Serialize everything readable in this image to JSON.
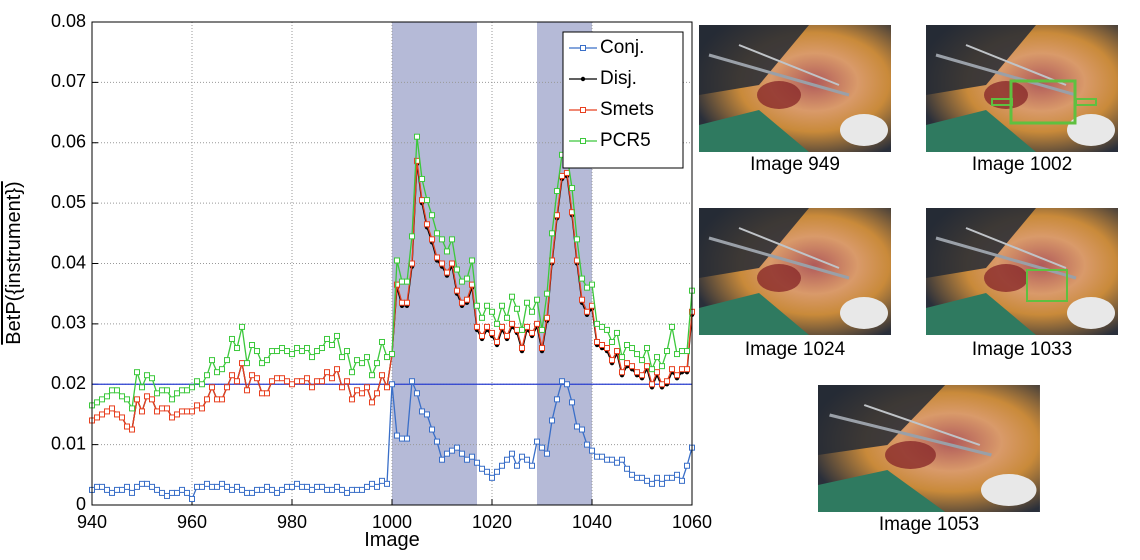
{
  "chart_data": {
    "type": "line",
    "x_label": "Image",
    "y_label": "BetP({instrument})",
    "x": [
      940,
      941,
      942,
      943,
      944,
      945,
      946,
      947,
      948,
      949,
      950,
      951,
      952,
      953,
      954,
      955,
      956,
      957,
      958,
      959,
      960,
      961,
      962,
      963,
      964,
      965,
      966,
      967,
      968,
      969,
      970,
      971,
      972,
      973,
      974,
      975,
      976,
      977,
      978,
      979,
      980,
      981,
      982,
      983,
      984,
      985,
      986,
      987,
      988,
      989,
      990,
      991,
      992,
      993,
      994,
      995,
      996,
      997,
      998,
      999,
      1000,
      1001,
      1002,
      1003,
      1004,
      1005,
      1006,
      1007,
      1008,
      1009,
      1010,
      1011,
      1012,
      1013,
      1014,
      1015,
      1016,
      1017,
      1018,
      1019,
      1020,
      1021,
      1022,
      1023,
      1024,
      1025,
      1026,
      1027,
      1028,
      1029,
      1030,
      1031,
      1032,
      1033,
      1034,
      1035,
      1036,
      1037,
      1038,
      1039,
      1040,
      1041,
      1042,
      1043,
      1044,
      1045,
      1046,
      1047,
      1048,
      1049,
      1050,
      1051,
      1052,
      1053,
      1054,
      1055,
      1056,
      1057,
      1058,
      1059,
      1060
    ],
    "series": [
      {
        "name": "Conj.",
        "color": "#3a6fc8",
        "marker": "square",
        "values": [
          0.0025,
          0.003,
          0.003,
          0.0025,
          0.002,
          0.0025,
          0.0025,
          0.003,
          0.002,
          0.003,
          0.0035,
          0.0035,
          0.003,
          0.0025,
          0.002,
          0.0015,
          0.002,
          0.002,
          0.0025,
          0.002,
          0.001,
          0.003,
          0.003,
          0.0035,
          0.003,
          0.003,
          0.0035,
          0.003,
          0.0025,
          0.003,
          0.0025,
          0.002,
          0.002,
          0.0025,
          0.0025,
          0.003,
          0.0025,
          0.002,
          0.0025,
          0.003,
          0.003,
          0.0035,
          0.003,
          0.003,
          0.0025,
          0.003,
          0.003,
          0.0025,
          0.0025,
          0.003,
          0.0025,
          0.002,
          0.0025,
          0.0025,
          0.0025,
          0.003,
          0.0035,
          0.003,
          0.004,
          0.0035,
          0.02,
          0.0115,
          0.011,
          0.011,
          0.0205,
          0.0185,
          0.0155,
          0.015,
          0.0125,
          0.0105,
          0.0075,
          0.0085,
          0.009,
          0.0095,
          0.0085,
          0.0075,
          0.008,
          0.007,
          0.006,
          0.0055,
          0.0045,
          0.0055,
          0.0065,
          0.0075,
          0.0085,
          0.0065,
          0.008,
          0.0075,
          0.0065,
          0.0105,
          0.0095,
          0.0085,
          0.014,
          0.0175,
          0.0205,
          0.02,
          0.017,
          0.013,
          0.0125,
          0.01,
          0.009,
          0.008,
          0.008,
          0.0075,
          0.0075,
          0.007,
          0.0075,
          0.006,
          0.005,
          0.0045,
          0.0045,
          0.004,
          0.0035,
          0.0045,
          0.0035,
          0.0045,
          0.0045,
          0.005,
          0.004,
          0.0065,
          0.0095
        ]
      },
      {
        "name": "Disj.",
        "color": "#000000",
        "marker": "dot",
        "values": [
          0.014,
          0.0145,
          0.015,
          0.0155,
          0.016,
          0.015,
          0.0145,
          0.013,
          0.0125,
          0.0175,
          0.0155,
          0.018,
          0.0175,
          0.0155,
          0.016,
          0.016,
          0.0145,
          0.015,
          0.0155,
          0.0155,
          0.0155,
          0.0165,
          0.016,
          0.0175,
          0.0195,
          0.0175,
          0.0175,
          0.0195,
          0.0215,
          0.0205,
          0.0235,
          0.019,
          0.0215,
          0.021,
          0.0185,
          0.0185,
          0.0205,
          0.021,
          0.021,
          0.0205,
          0.02,
          0.0205,
          0.0205,
          0.021,
          0.0195,
          0.0205,
          0.0205,
          0.022,
          0.021,
          0.0225,
          0.0195,
          0.0205,
          0.0175,
          0.019,
          0.0185,
          0.0195,
          0.017,
          0.0185,
          0.0215,
          0.0195,
          0.025,
          0.036,
          0.033,
          0.033,
          0.0395,
          0.0565,
          0.05,
          0.046,
          0.0435,
          0.0405,
          0.0395,
          0.038,
          0.0395,
          0.035,
          0.033,
          0.0335,
          0.036,
          0.029,
          0.0275,
          0.029,
          0.028,
          0.0265,
          0.029,
          0.0275,
          0.0295,
          0.0285,
          0.0255,
          0.029,
          0.028,
          0.0295,
          0.0255,
          0.0305,
          0.04,
          0.0475,
          0.054,
          0.0545,
          0.048,
          0.04,
          0.0335,
          0.0315,
          0.0325,
          0.0265,
          0.026,
          0.0255,
          0.0235,
          0.025,
          0.0215,
          0.023,
          0.0225,
          0.0215,
          0.021,
          0.0225,
          0.0195,
          0.0215,
          0.0195,
          0.02,
          0.022,
          0.021,
          0.022,
          0.022,
          0.0315
        ]
      },
      {
        "name": "Smets",
        "color": "#e84020",
        "marker": "square",
        "values": [
          0.014,
          0.0145,
          0.015,
          0.0155,
          0.016,
          0.015,
          0.0145,
          0.013,
          0.0125,
          0.0175,
          0.0155,
          0.018,
          0.0175,
          0.0155,
          0.016,
          0.016,
          0.0145,
          0.015,
          0.0155,
          0.0155,
          0.0155,
          0.0165,
          0.016,
          0.0175,
          0.0195,
          0.0175,
          0.0175,
          0.0195,
          0.0215,
          0.0205,
          0.0235,
          0.019,
          0.0215,
          0.021,
          0.0185,
          0.0185,
          0.0205,
          0.021,
          0.021,
          0.0205,
          0.02,
          0.0205,
          0.0205,
          0.021,
          0.0195,
          0.0205,
          0.0205,
          0.022,
          0.021,
          0.0225,
          0.0195,
          0.0205,
          0.0175,
          0.019,
          0.0185,
          0.0195,
          0.017,
          0.0185,
          0.0215,
          0.0195,
          0.025,
          0.0365,
          0.0335,
          0.0335,
          0.04,
          0.057,
          0.0505,
          0.0465,
          0.044,
          0.041,
          0.04,
          0.0385,
          0.04,
          0.0355,
          0.0335,
          0.034,
          0.0365,
          0.0295,
          0.028,
          0.0295,
          0.0285,
          0.027,
          0.0295,
          0.028,
          0.03,
          0.029,
          0.026,
          0.0295,
          0.0285,
          0.03,
          0.026,
          0.031,
          0.0405,
          0.048,
          0.0545,
          0.055,
          0.0485,
          0.0405,
          0.034,
          0.032,
          0.033,
          0.027,
          0.0265,
          0.026,
          0.024,
          0.0255,
          0.022,
          0.0235,
          0.023,
          0.022,
          0.0215,
          0.023,
          0.02,
          0.022,
          0.02,
          0.0205,
          0.0225,
          0.0215,
          0.0225,
          0.0225,
          0.032
        ]
      },
      {
        "name": "PCR5",
        "color": "#3cc83c",
        "marker": "square",
        "values": [
          0.0165,
          0.017,
          0.0175,
          0.018,
          0.019,
          0.019,
          0.018,
          0.0175,
          0.016,
          0.022,
          0.0195,
          0.0215,
          0.021,
          0.0185,
          0.019,
          0.019,
          0.0175,
          0.0185,
          0.019,
          0.019,
          0.0195,
          0.0205,
          0.02,
          0.0215,
          0.024,
          0.022,
          0.0225,
          0.024,
          0.0275,
          0.026,
          0.0295,
          0.0235,
          0.0265,
          0.0255,
          0.0235,
          0.024,
          0.0255,
          0.0255,
          0.026,
          0.0255,
          0.025,
          0.026,
          0.0255,
          0.026,
          0.0245,
          0.0255,
          0.026,
          0.0275,
          0.0265,
          0.028,
          0.0245,
          0.0255,
          0.022,
          0.024,
          0.0235,
          0.0245,
          0.0215,
          0.0235,
          0.027,
          0.0245,
          0.025,
          0.0405,
          0.037,
          0.037,
          0.0445,
          0.061,
          0.054,
          0.0505,
          0.048,
          0.045,
          0.044,
          0.042,
          0.044,
          0.039,
          0.037,
          0.0375,
          0.0405,
          0.033,
          0.031,
          0.033,
          0.032,
          0.03,
          0.033,
          0.031,
          0.0345,
          0.0325,
          0.029,
          0.0335,
          0.032,
          0.034,
          0.029,
          0.035,
          0.045,
          0.052,
          0.058,
          0.058,
          0.0525,
          0.044,
          0.0375,
          0.036,
          0.0365,
          0.03,
          0.0295,
          0.029,
          0.027,
          0.0285,
          0.0245,
          0.0265,
          0.026,
          0.025,
          0.024,
          0.026,
          0.0225,
          0.0245,
          0.023,
          0.0255,
          0.0295,
          0.025,
          0.0255,
          0.0255,
          0.0355
        ]
      }
    ],
    "reference_line": {
      "y": 0.02,
      "color": "#2a3fd0"
    },
    "shaded_regions": [
      {
        "x0": 1000,
        "x1": 1017
      },
      {
        "x0": 1029,
        "x1": 1040
      }
    ],
    "shade_color": "#a8aed0",
    "xlim": [
      940,
      1060
    ],
    "xticks": [
      940,
      960,
      980,
      1000,
      1020,
      1040,
      1060
    ],
    "ylim": [
      0,
      0.08
    ],
    "yticks": [
      0,
      0.01,
      0.02,
      0.03,
      0.04,
      0.05,
      0.06,
      0.07,
      0.08
    ],
    "grid": true,
    "legend": "upper right"
  },
  "images": [
    {
      "caption": "Image 949"
    },
    {
      "caption": "Image 1002"
    },
    {
      "caption": "Image 1024"
    },
    {
      "caption": "Image 1033"
    },
    {
      "caption": "Image 1053"
    }
  ]
}
